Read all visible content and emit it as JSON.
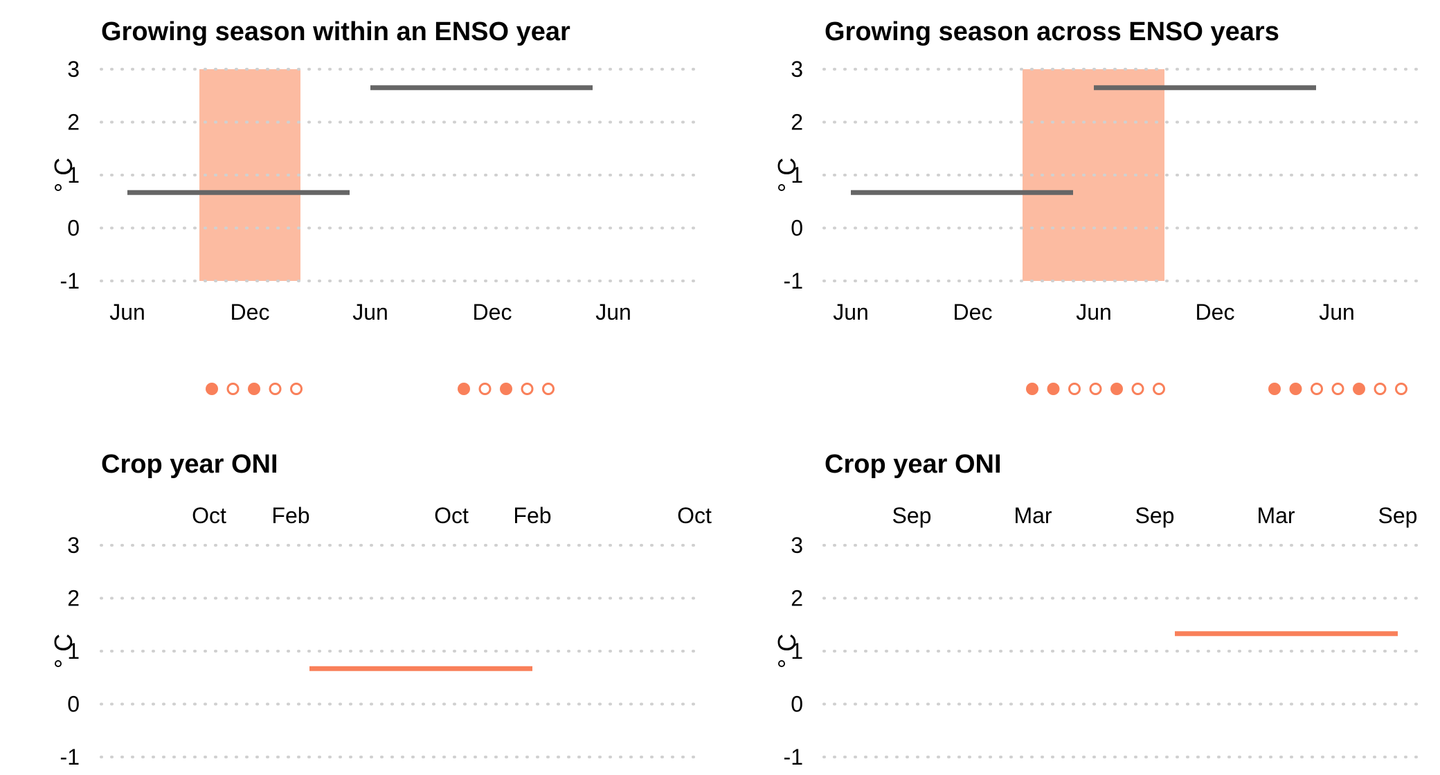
{
  "colors": {
    "shade": "#fcbba1",
    "season_line": "#666666",
    "oni_line": "#f9805a",
    "marker": "#f9805a",
    "grid": "#d0d0d0"
  },
  "chart_data": [
    {
      "type": "line",
      "title": "Growing season within an ENSO year",
      "xlabel": "",
      "ylabel": "° C",
      "ylim": [
        -1,
        3
      ],
      "yticks": [
        "3",
        "2",
        "1",
        "0",
        "-1"
      ],
      "x_tick_labels": [
        "Jun",
        "Dec",
        "Jun",
        "Dec",
        "Jun"
      ],
      "grid": "horizontal dotted",
      "shaded_period": {
        "start": "Oct",
        "end": "Mar"
      },
      "segments": [
        {
          "start": "Jun",
          "end": "May",
          "value": 0.67
        },
        {
          "start": "Jun",
          "end": "May",
          "value": 2.65
        }
      ],
      "marker_groups": [
        {
          "filled": [
            true,
            false,
            true,
            false,
            false
          ]
        },
        {
          "filled": [
            true,
            false,
            true,
            false,
            false
          ]
        }
      ]
    },
    {
      "type": "line",
      "title": "Growing season across ENSO years",
      "xlabel": "",
      "ylabel": "° C",
      "ylim": [
        -1,
        3
      ],
      "yticks": [
        "3",
        "2",
        "1",
        "0",
        "-1"
      ],
      "x_tick_labels": [
        "Jun",
        "Dec",
        "Jun",
        "Dec",
        "Jun"
      ],
      "grid": "horizontal dotted",
      "shaded_period": {
        "start": "Feb",
        "end": "Sep"
      },
      "segments": [
        {
          "start": "Jun",
          "end": "May",
          "value": 0.67
        },
        {
          "start": "Jun",
          "end": "May",
          "value": 2.65
        }
      ],
      "marker_groups": [
        {
          "filled": [
            true,
            true,
            false,
            false,
            true,
            false,
            false
          ]
        },
        {
          "filled": [
            true,
            true,
            false,
            false,
            true,
            false,
            false
          ]
        }
      ]
    },
    {
      "type": "line",
      "title": "Crop year ONI",
      "xlabel": "",
      "ylabel": "° C",
      "ylim": [
        -1,
        3
      ],
      "yticks": [
        "3",
        "2",
        "1",
        "0",
        "-1"
      ],
      "x_tick_labels": [
        "Oct",
        "Feb",
        "Oct",
        "Feb",
        "Oct"
      ],
      "grid": "horizontal dotted",
      "segments": [
        {
          "start": "Mar",
          "end": "Feb",
          "value": 0.67
        }
      ]
    },
    {
      "type": "line",
      "title": "Crop year ONI",
      "xlabel": "",
      "ylabel": "° C",
      "ylim": [
        -1,
        3
      ],
      "yticks": [
        "3",
        "2",
        "1",
        "0",
        "-1"
      ],
      "x_tick_labels": [
        "Sep",
        "Mar",
        "Sep",
        "Mar",
        "Sep"
      ],
      "grid": "horizontal dotted",
      "segments": [
        {
          "start": "Oct",
          "end": "Sep",
          "value": 1.33
        }
      ]
    }
  ]
}
